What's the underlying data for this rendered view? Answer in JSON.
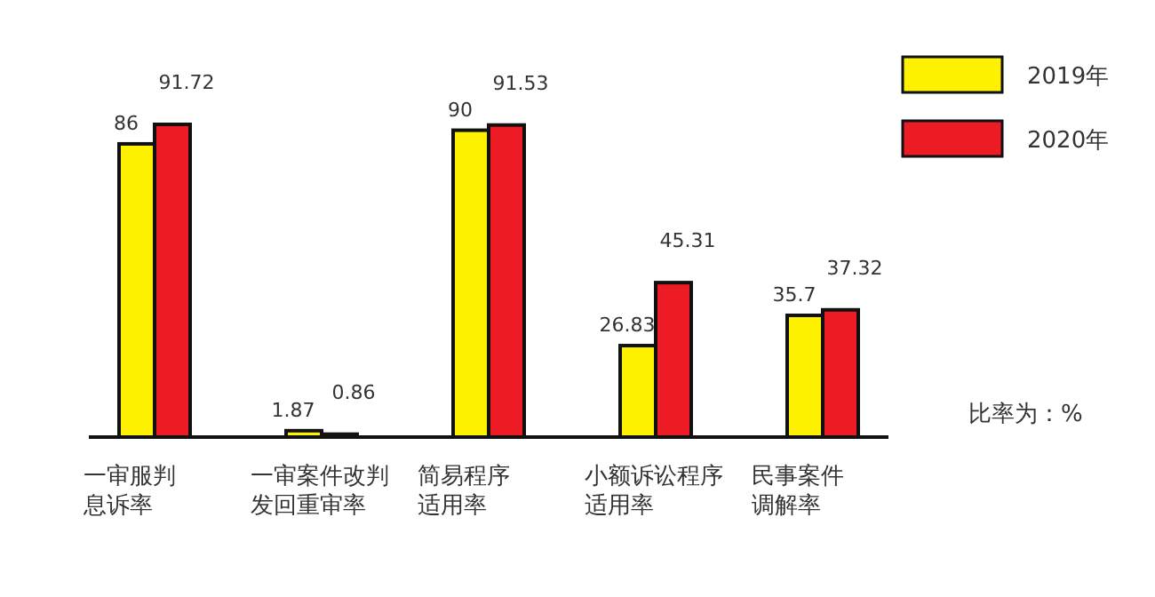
{
  "chart_data": {
    "type": "bar",
    "categories": [
      "一审服判息诉率",
      "一审案件改判发回重审率",
      "简易程序适用率",
      "小额诉讼程序适用率",
      "民事案件调解率"
    ],
    "series": [
      {
        "name": "2019年",
        "color": "#fff200",
        "values": [
          86,
          1.87,
          90,
          26.83,
          35.7
        ]
      },
      {
        "name": "2020年",
        "color": "#ed1c24",
        "values": [
          91.72,
          0.86,
          91.53,
          45.31,
          37.32
        ]
      }
    ],
    "data_labels": true,
    "legend": "top right",
    "annotations": [
      "比率为：%"
    ]
  }
}
